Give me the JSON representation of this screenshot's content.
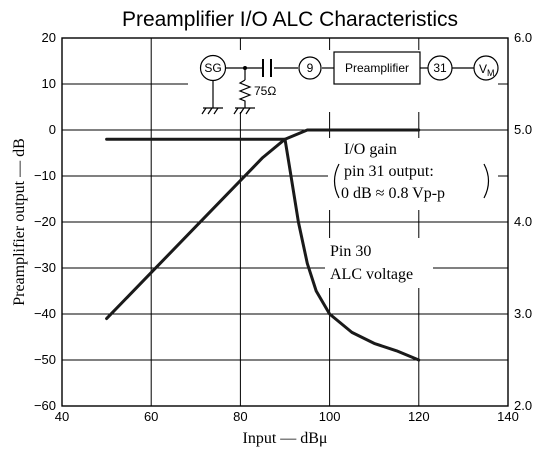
{
  "chart_data": {
    "type": "line",
    "title": "Preamplifier I/O ALC Characteristics",
    "xlabel": "Input — dBμ",
    "ylabel": "Preamplifier output — dB",
    "xlim": [
      40,
      140
    ],
    "ylim": [
      -60,
      20
    ],
    "y2lim": [
      2.0,
      6.0
    ],
    "x_ticks": [
      "40",
      "60",
      "80",
      "100",
      "120",
      "140"
    ],
    "y_ticks": [
      "−60",
      "−50",
      "−40",
      "−30",
      "−20",
      "−10",
      "0",
      "10",
      "20"
    ],
    "y2_ticks": [
      "2.0",
      "3.0",
      "4.0",
      "5.0",
      "6.0"
    ],
    "grid": true,
    "series": [
      {
        "axis": "left",
        "x": [
          50,
          60,
          70,
          80,
          85,
          90,
          95,
          100,
          105,
          110,
          120
        ],
        "y": [
          -41,
          -31,
          -21,
          -11,
          -6,
          -2,
          0,
          0,
          0,
          0,
          0
        ]
      },
      {
        "axis": "right",
        "x": [
          50,
          70,
          89,
          90,
          91,
          93,
          95,
          97,
          100,
          105,
          110,
          115,
          120
        ],
        "y": [
          4.9,
          4.9,
          4.9,
          4.9,
          4.6,
          4.0,
          3.55,
          3.25,
          3.0,
          2.8,
          2.68,
          2.6,
          2.5
        ]
      }
    ],
    "annotations": {
      "gain_line1": "I/O gain",
      "gain_line2": "pin 31 output:",
      "gain_line3": "0 dB ≈ 0.8 Vp-p",
      "alc_line1": "Pin 30",
      "alc_line2": "ALC voltage"
    },
    "schematic": {
      "sg": "SG",
      "resistor": "75Ω",
      "pin_in": "9",
      "block": "Preamplifier",
      "pin_out": "31",
      "vm": "V",
      "vm_sub": "M"
    }
  }
}
